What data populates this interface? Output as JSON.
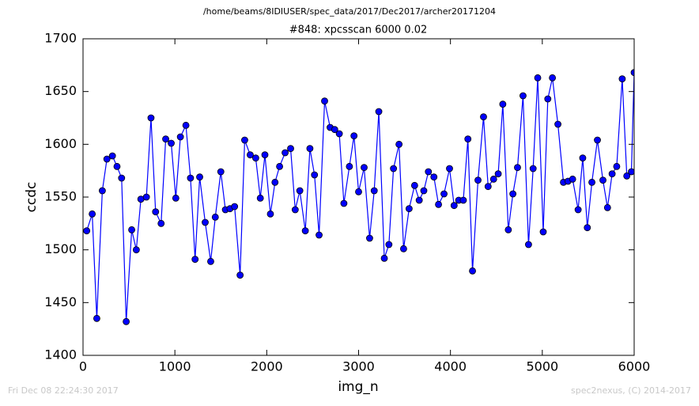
{
  "chart_data": {
    "type": "line",
    "subtitle": "/home/beams/8IDIUSER/spec_data/2017/Dec2017/archer20171204",
    "title": "#848: xpcsscan 6000 0.02",
    "xlabel": "img_n",
    "ylabel": "ccdc",
    "footer_left": "Fri Dec 08 22:24:30 2017",
    "footer_right": "spec2nexus, (C) 2014-2017",
    "color": "#0000ff",
    "x": [
      40,
      100,
      150,
      210,
      260,
      320,
      370,
      420,
      470,
      530,
      580,
      630,
      690,
      740,
      790,
      850,
      900,
      960,
      1010,
      1060,
      1120,
      1170,
      1220,
      1270,
      1330,
      1390,
      1440,
      1500,
      1550,
      1600,
      1650,
      1710,
      1760,
      1820,
      1880,
      1930,
      1980,
      2040,
      2090,
      2140,
      2200,
      2260,
      2310,
      2360,
      2420,
      2470,
      2520,
      2570,
      2630,
      2690,
      2740,
      2790,
      2840,
      2900,
      2950,
      3000,
      3060,
      3120,
      3170,
      3220,
      3280,
      3330,
      3380,
      3440,
      3490,
      3550,
      3610,
      3660,
      3710,
      3760,
      3820,
      3870,
      3930,
      3990,
      4040,
      4090,
      4140,
      4190,
      4240,
      4300,
      4360,
      4410,
      4470,
      4520,
      4570,
      4630,
      4680,
      4730,
      4790,
      4850,
      4900,
      4950,
      5010,
      5060,
      5110,
      5170,
      5230,
      5280,
      5330,
      5390,
      5440,
      5490,
      5540,
      5600,
      5660,
      5710,
      5760,
      5810,
      5870,
      5920,
      5970,
      6000
    ],
    "values": [
      1518,
      1534,
      1435,
      1556,
      1586,
      1589,
      1579,
      1568,
      1432,
      1519,
      1500,
      1548,
      1550,
      1625,
      1536,
      1525,
      1605,
      1601,
      1549,
      1607,
      1618,
      1568,
      1491,
      1569,
      1526,
      1489,
      1531,
      1574,
      1538,
      1539,
      1541,
      1476,
      1604,
      1590,
      1587,
      1549,
      1590,
      1534,
      1564,
      1579,
      1592,
      1596,
      1538,
      1556,
      1518,
      1596,
      1571,
      1514,
      1641,
      1616,
      1614,
      1610,
      1544,
      1579,
      1608,
      1555,
      1578,
      1511,
      1556,
      1631,
      1492,
      1505,
      1577,
      1600,
      1501,
      1539,
      1561,
      1547,
      1556,
      1574,
      1569,
      1543,
      1553,
      1577,
      1542,
      1547,
      1547,
      1605,
      1480,
      1566,
      1626,
      1560,
      1567,
      1572,
      1638,
      1519,
      1553,
      1578,
      1646,
      1505,
      1577,
      1663,
      1517,
      1643,
      1663,
      1619,
      1564,
      1565,
      1567,
      1538,
      1587,
      1521,
      1564,
      1604,
      1566,
      1540,
      1572,
      1579,
      1662,
      1570,
      1574,
      1668
    ],
    "xlim": [
      0,
      6000
    ],
    "xticks": [
      0,
      1000,
      2000,
      3000,
      4000,
      5000,
      6000
    ],
    "ylim": [
      1400,
      1700
    ],
    "yticks": [
      1400,
      1450,
      1500,
      1550,
      1600,
      1650,
      1700
    ]
  }
}
